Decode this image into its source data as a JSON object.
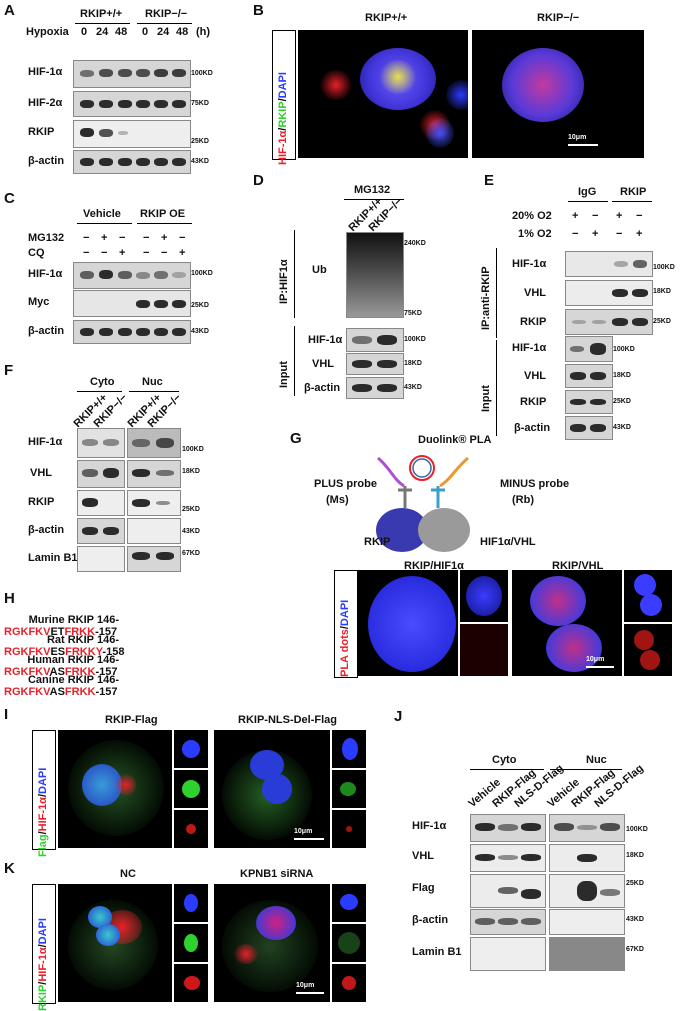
{
  "panels": {
    "A": {
      "letter": "A",
      "groups": [
        "RKIP+/+",
        "RKIP−/−"
      ],
      "condition_label": "Hypoxia",
      "timepoints": [
        "0",
        "24",
        "48",
        "0",
        "24",
        "48"
      ],
      "unit": "(h)",
      "rows": [
        {
          "name": "HIF-1α",
          "marker": "100KD"
        },
        {
          "name": "HIF-2α",
          "marker": "75KD"
        },
        {
          "name": "RKIP",
          "marker": "25KD"
        },
        {
          "name": "β-actin",
          "marker": "43KD"
        }
      ]
    },
    "B": {
      "letter": "B",
      "columns": [
        "RKIP+/+",
        "RKIP−/−"
      ],
      "stain_label": [
        "HIF-1α",
        "/",
        "RKIP",
        "/",
        "DAPI"
      ],
      "scale": "10μm"
    },
    "C": {
      "letter": "C",
      "groups": [
        "Vehicle",
        "RKIP OE"
      ],
      "treatments": [
        {
          "name": "MG132",
          "signs": [
            "−",
            "+",
            "−",
            "−",
            "+",
            "−"
          ]
        },
        {
          "name": "CQ",
          "signs": [
            "−",
            "−",
            "+",
            "−",
            "−",
            "+"
          ]
        }
      ],
      "rows": [
        {
          "name": "HIF-1α",
          "marker": "100KD"
        },
        {
          "name": "Myc",
          "marker": "25KD"
        },
        {
          "name": "β-actin",
          "marker": "43KD"
        }
      ]
    },
    "D": {
      "letter": "D",
      "treatment": "MG132",
      "lanes": [
        "RKIP+/+",
        "RKIP−/−"
      ],
      "ip_label": "IP:HIF1α",
      "ub_label": "Ub",
      "ub_markers": [
        "240KD",
        "75KD"
      ],
      "input_label": "Input",
      "input_rows": [
        {
          "name": "HIF-1α",
          "marker": "100KD"
        },
        {
          "name": "VHL",
          "marker": "18KD"
        },
        {
          "name": "β-actin",
          "marker": "43KD"
        }
      ]
    },
    "E": {
      "letter": "E",
      "groups": [
        "IgG",
        "RKIP"
      ],
      "conditions": [
        {
          "name": "20% O2",
          "signs": [
            "+",
            "−",
            "+",
            "−"
          ]
        },
        {
          "name": "1% O2",
          "signs": [
            "−",
            "+",
            "−",
            "+"
          ]
        }
      ],
      "ip_label": "IP:anti-RKIP",
      "ip_rows": [
        {
          "name": "HIF-1α",
          "marker": "100KD"
        },
        {
          "name": "VHL",
          "marker": "18KD"
        },
        {
          "name": "RKIP",
          "marker": "25KD"
        }
      ],
      "input_label": "Input",
      "input_rows": [
        {
          "name": "HIF-1α",
          "marker": "100KD"
        },
        {
          "name": "VHL",
          "marker": "18KD"
        },
        {
          "name": "RKIP",
          "marker": "25KD"
        },
        {
          "name": "β-actin",
          "marker": "43KD"
        }
      ]
    },
    "F": {
      "letter": "F",
      "fractions": [
        "Cyto",
        "Nuc"
      ],
      "lanes": [
        "RKIP+/+",
        "RKIP−/−",
        "RKIP+/+",
        "RKIP−/−"
      ],
      "rows": [
        {
          "name": "HIF-1α",
          "marker": "100KD"
        },
        {
          "name": "VHL",
          "marker": "18KD"
        },
        {
          "name": "RKIP",
          "marker": "25KD"
        },
        {
          "name": "β-actin",
          "marker": "43KD"
        },
        {
          "name": "Lamin B1",
          "marker": "67KD"
        }
      ]
    },
    "G": {
      "letter": "G",
      "title": "Duolink® PLA",
      "plus_probe": "PLUS probe",
      "plus_species": "(Ms)",
      "minus_probe": "MINUS probe",
      "minus_species": "(Rb)",
      "target1": "RKIP",
      "target2": "HIF1α/VHL",
      "columns": [
        "RKIP/HIF1α",
        "RKIP/VHL"
      ],
      "stain_label": [
        "PLA dots",
        "/",
        "DAPI"
      ],
      "scale": "10μm"
    },
    "H": {
      "letter": "H",
      "sequences": [
        {
          "species": "Murine RKIP",
          "start": "146-",
          "red1": "RGKFKV",
          "black": "ET",
          "red2": "FRKK",
          "end": "-157"
        },
        {
          "species": "Rat RKIP",
          "start": "146-",
          "red1": "RGKFKV",
          "black": "ES",
          "red2": "FRKKY",
          "end": "-158"
        },
        {
          "species": "Human RKIP",
          "start": "146-",
          "red1": "RGKFKV",
          "black": "AS",
          "red2": "FRKK",
          "end": "-157"
        },
        {
          "species": "Canine RKIP",
          "start": "146-",
          "red1": "RGKFKV",
          "black": "AS",
          "red2": "FRKK",
          "end": "-157"
        }
      ]
    },
    "I": {
      "letter": "I",
      "columns": [
        "RKIP-Flag",
        "RKIP-NLS-Del-Flag"
      ],
      "stain_label": [
        "Flag",
        "/",
        "HIF-1α",
        "/",
        "DAPI"
      ],
      "scale": "10μm"
    },
    "J": {
      "letter": "J",
      "fractions": [
        "Cyto",
        "Nuc"
      ],
      "lanes": [
        "Vehicle",
        "RKIP-Flag",
        "NLS-D-Flag",
        "Vehicle",
        "RKIP-Flag",
        "NLS-D-Flag"
      ],
      "rows": [
        {
          "name": "HIF-1α",
          "marker": "100KD"
        },
        {
          "name": "VHL",
          "marker": "18KD"
        },
        {
          "name": "Flag",
          "marker": "25KD"
        },
        {
          "name": "β-actin",
          "marker": "43KD"
        },
        {
          "name": "Lamin B1",
          "marker": "67KD"
        }
      ]
    },
    "K": {
      "letter": "K",
      "columns": [
        "NC",
        "KPNB1 siRNA"
      ],
      "stain_label": [
        "RKIP",
        "/",
        "HIF-1α",
        "/",
        "DAPI"
      ],
      "scale": "10μm"
    }
  },
  "colors": {
    "red": "#e8202a",
    "green": "#2fd12f",
    "blue": "#2b3cff"
  }
}
